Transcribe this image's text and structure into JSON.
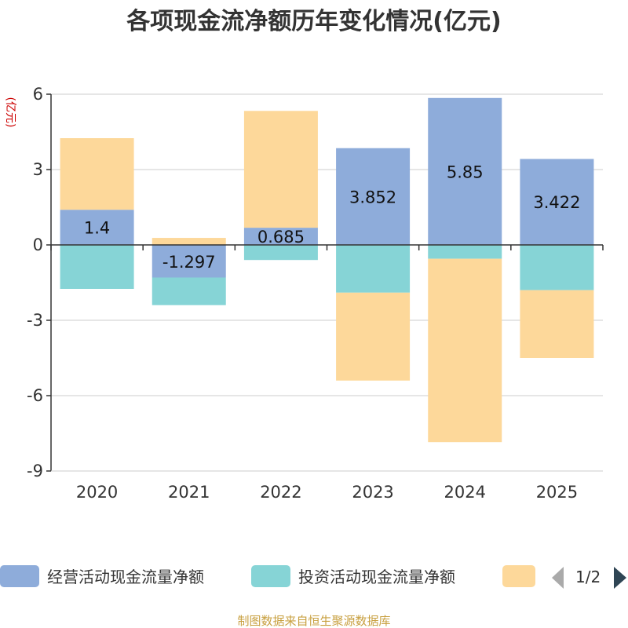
{
  "title": "各项现金流净额历年变化情况(亿元)",
  "source": "制图数据来自恒生聚源数据库",
  "pager": {
    "text": "1/2"
  },
  "chart_data": {
    "type": "bar",
    "stacked": true,
    "unit": "(亿元)",
    "categories": [
      "2020",
      "2021",
      "2022",
      "2023",
      "2024",
      "2025"
    ],
    "ylim": [
      -9,
      6
    ],
    "yticks": [
      6,
      3,
      0,
      -3,
      -6,
      -9
    ],
    "series": [
      {
        "name": "经营活动现金流量净额",
        "color": "#8eacda",
        "values": [
          1.4,
          -1.297,
          0.685,
          3.852,
          5.85,
          3.422
        ],
        "labels": [
          "1.4",
          "-1.297",
          "0.685",
          "3.852",
          "5.85",
          "3.422"
        ]
      },
      {
        "name": "投资活动现金流量净额",
        "color": "#86d4d6",
        "values": [
          -1.75,
          -1.1,
          -0.6,
          -1.9,
          -0.55,
          -1.8
        ]
      },
      {
        "name": "",
        "color": "#fdd89a",
        "values": [
          2.85,
          0.28,
          4.65,
          -3.5,
          -7.3,
          -2.7
        ]
      }
    ]
  }
}
